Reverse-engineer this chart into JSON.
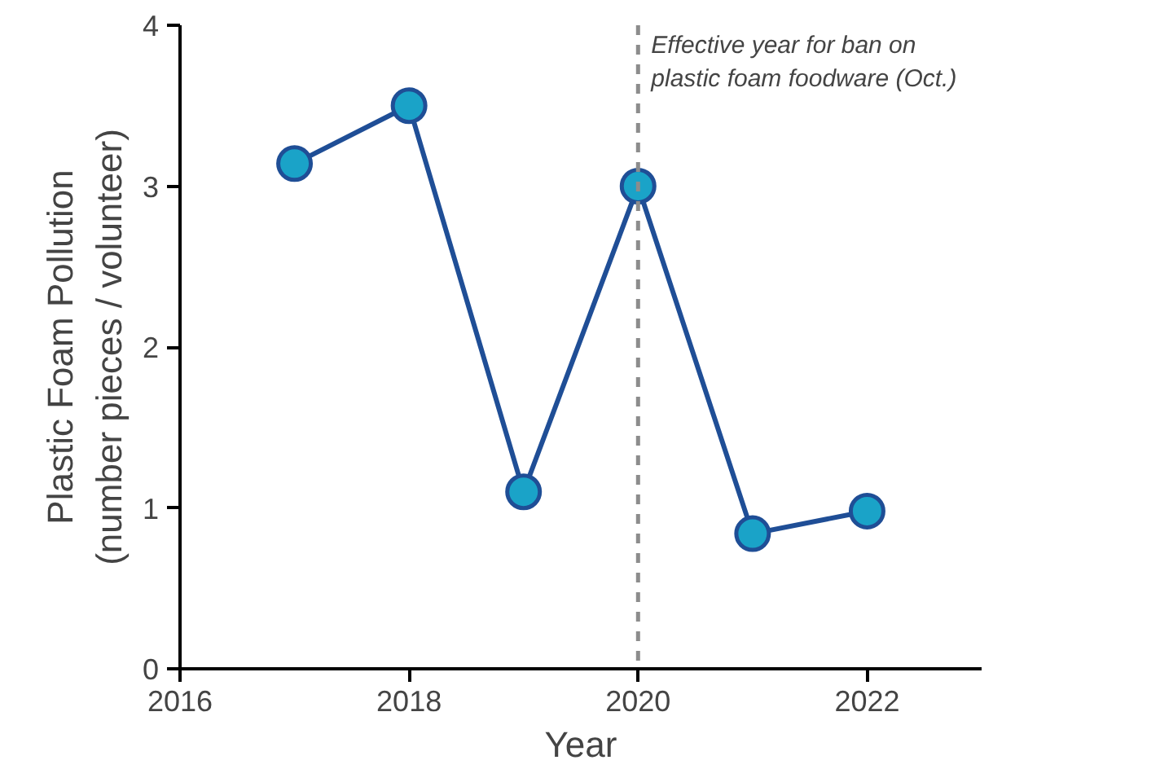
{
  "chart_data": {
    "type": "line",
    "xlabel": "Year",
    "ylabel": "Plastic Foam Pollution\n(number pieces / volunteer)",
    "x": [
      2017,
      2018,
      2019,
      2020,
      2021,
      2022
    ],
    "series": [
      {
        "color": "#1f4e96",
        "values": [
          3.14,
          3.5,
          1.1,
          3.0,
          0.84,
          0.98
        ]
      }
    ],
    "marker": "circle",
    "line_style": "solid",
    "grid": false,
    "xlim": [
      2016,
      2023
    ],
    "xticks": [
      2016,
      2018,
      2020,
      2022
    ],
    "ylim": [
      0,
      4
    ],
    "yticks": [
      0,
      1,
      2,
      3,
      4
    ],
    "ref_lines": [
      {
        "axis": "x",
        "value": 2020,
        "label": "Effective year for ban on\nplastic foam foodware (Oct.)",
        "color": "#8c8c8c",
        "line_style": "dashed"
      }
    ]
  }
}
